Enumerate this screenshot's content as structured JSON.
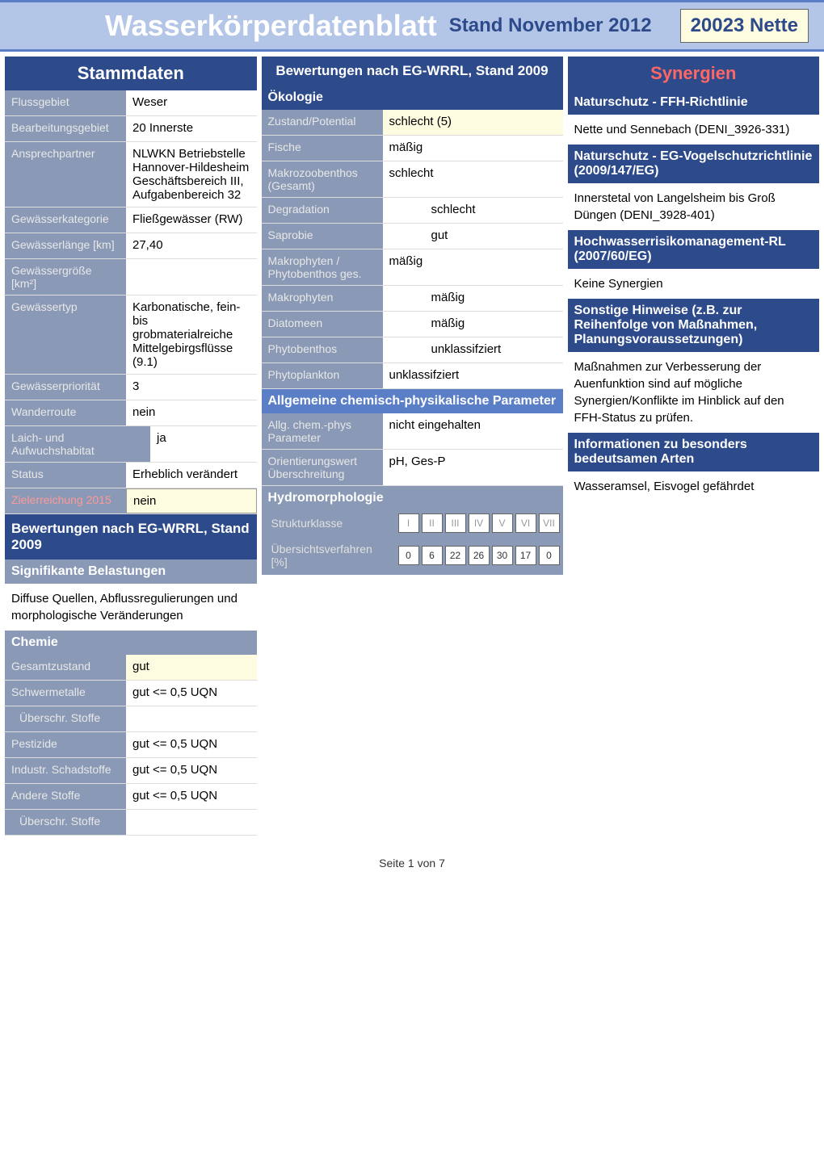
{
  "header": {
    "title": "Wasserkörperdatenblatt",
    "subtitle": "Stand November 2012",
    "badge": "20023 Nette"
  },
  "stammdaten": {
    "title": "Stammdaten",
    "rows": {
      "flussgebiet_label": "Flussgebiet",
      "flussgebiet_value": "Weser",
      "bearbeitungsgebiet_label": "Bearbeitungsgebiet",
      "bearbeitungsgebiet_value": "20 Innerste",
      "ansprechpartner_label": "Ansprechpartner",
      "ansprechpartner_value": "NLWKN Betriebstelle Hannover-Hildesheim Geschäftsbereich III, Aufgabenbereich 32",
      "gewaesserkategorie_label": "Gewässerkategorie",
      "gewaesserkategorie_value": "Fließgewässer (RW)",
      "gewaesserlaenge_label": "Gewässerlänge [km]",
      "gewaesserlaenge_value": "27,40",
      "gewaessergroesse_label": "Gewässergröße [km²]",
      "gewaessergroesse_value": "",
      "gewaessertyp_label": "Gewässertyp",
      "gewaessertyp_value": "Karbonatische, fein- bis grobmaterialreiche Mittelgebirgsflüsse (9.1)",
      "gewaesserprioritaet_label": "Gewässerpriorität",
      "gewaesserprioritaet_value": "3",
      "wanderroute_label": "Wanderroute",
      "wanderroute_value": "nein",
      "laichhabitat_label": "Laich- und Aufwuchshabitat",
      "laichhabitat_value": "ja",
      "status_label": "Status",
      "status_value": "Erheblich verändert",
      "zielerreichung_label": "Zielerreichung 2015",
      "zielerreichung_value": "nein"
    }
  },
  "bewertungen_left": {
    "title": "Bewertungen nach EG-WRRL, Stand 2009",
    "belastungen_header": "Signifikante Belastungen",
    "belastungen_text": "Diffuse Quellen, Abflussregulierungen und morphologische Veränderungen",
    "chemie_header": "Chemie",
    "gesamtzustand_label": "Gesamtzustand",
    "gesamtzustand_value": "gut",
    "schwermetalle_label": "Schwermetalle",
    "schwermetalle_value": "gut <= 0,5 UQN",
    "ueberschr1_label": "Überschr. Stoffe",
    "ueberschr1_value": "",
    "pestizide_label": "Pestizide",
    "pestizide_value": "gut <= 0,5 UQN",
    "industr_label": "Industr. Schadstoffe",
    "industr_value": "gut <= 0,5 UQN",
    "andere_label": "Andere Stoffe",
    "andere_value": "gut <= 0,5 UQN",
    "ueberschr2_label": "Überschr. Stoffe",
    "ueberschr2_value": ""
  },
  "bewertungen_mid": {
    "title": "Bewertungen nach EG-WRRL, Stand 2009",
    "oekologie_header": "Ökologie",
    "zustand_label": "Zustand/Potential",
    "zustand_value": "schlecht (5)",
    "fische_label": "Fische",
    "fische_value": "mäßig",
    "makrozoo_label": "Makrozoobenthos (Gesamt)",
    "makrozoo_value": "schlecht",
    "degradation_label": "Degradation",
    "degradation_value": "schlecht",
    "saprobie_label": "Saprobie",
    "saprobie_value": "gut",
    "makrophyten_label": "Makrophyten / Phytobenthos ges.",
    "makrophyten_value": "mäßig",
    "makrophyten2_label": "Makrophyten",
    "makrophyten2_value": "mäßig",
    "diatomeen_label": "Diatomeen",
    "diatomeen_value": "mäßig",
    "phytobenthos_label": "Phytobenthos",
    "phytobenthos_value": "unklassifziert",
    "phytoplankton_label": "Phytoplankton",
    "phytoplankton_value": "unklassifziert",
    "allgemeine_header": "Allgemeine chemisch-physikalische Parameter",
    "allgchem_label": "Allg. chem.-phys Parameter",
    "allgchem_value": "nicht eingehalten",
    "orientierung_label": "Orientierungswert Überschreitung",
    "orientierung_value": "pH, Ges-P",
    "hydro_header": "Hydromorphologie",
    "struktur_label": "Strukturklasse",
    "struktur_roman": [
      "I",
      "II",
      "III",
      "IV",
      "V",
      "VI",
      "VII"
    ],
    "uebersicht_label": "Übersichtsverfahren [%]",
    "uebersicht_values": [
      "0",
      "6",
      "22",
      "26",
      "30",
      "17",
      "0"
    ]
  },
  "synergien": {
    "title": "Synergien",
    "ffh_header": "Naturschutz - FFH-Richtlinie",
    "ffh_text": "Nette und Sennebach (DENI_3926-331)",
    "vogel_header": "Naturschutz - EG-Vogelschutzrichtlinie (2009/147/EG)",
    "vogel_text": "Innerstetal von Langelsheim bis Groß Düngen (DENI_3928-401)",
    "hochwasser_header": "Hochwasserrisikomanagement-RL (2007/60/EG)",
    "hochwasser_text": "Keine Synergien",
    "sonstige_header": "Sonstige Hinweise (z.B. zur Reihenfolge von Maßnahmen, Planungsvoraussetzungen)",
    "sonstige_text": "Maßnahmen zur Verbesserung der Auenfunktion sind auf mögliche Synergien/Konflikte im Hinblick auf den FFH-Status zu prüfen.",
    "info_header": "Informationen zu besonders bedeutsamen Arten",
    "info_text": "Wasseramsel, Eisvogel gefährdet"
  },
  "footer": "Seite 1 von 7"
}
